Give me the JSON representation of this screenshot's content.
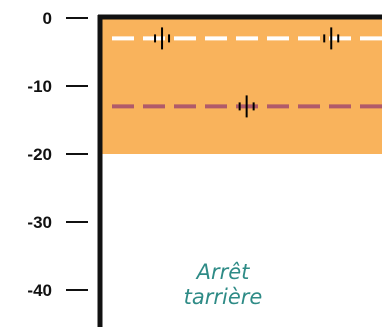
{
  "colors": {
    "zone_fill": "#f9b35c",
    "water_line": "#ffffff",
    "lower_line": "#b05a6a",
    "note_text": "#2e8b86",
    "axis": "#111111"
  },
  "chart_data": {
    "type": "diagram",
    "axis": {
      "ticks": [
        0,
        -10,
        -20,
        -30,
        -40
      ],
      "range": [
        -47.5,
        0
      ]
    },
    "zone": {
      "top": 0,
      "bottom": -20
    },
    "lines": [
      {
        "depth": -3,
        "style": "dashed",
        "color": "#ffffff",
        "markers": 2
      },
      {
        "depth": -13,
        "style": "dashed",
        "color": "#b05a6a",
        "markers": 1
      }
    ],
    "annotation": [
      "Arrêt",
      "tarrière"
    ]
  }
}
